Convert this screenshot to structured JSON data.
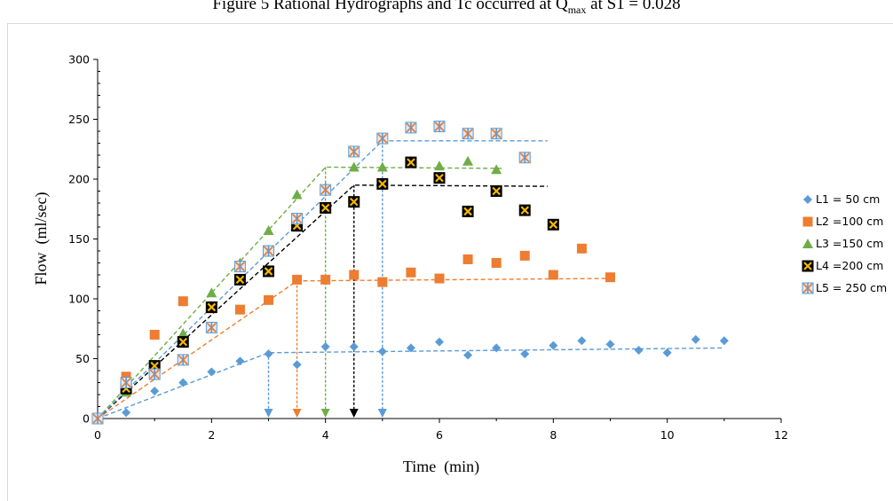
{
  "page": {
    "title": "Figure 5 Rational Hydrographs and Tc occurred at Q",
    "title_sub": "max",
    "title_tail": " at S1 = 0.028"
  },
  "colors": {
    "L1": "#5B9BD5",
    "L2": "#ED7D31",
    "L3": "#70AD47",
    "L4": "#000000",
    "L4_fill": "#F5B800",
    "L5_a": "#5B9BD5",
    "L5_b": "#ED7D31"
  },
  "chart_data": {
    "type": "scatter",
    "title": "",
    "xlabel": "Time  (min)",
    "ylabel": "Flow  (ml/sec)",
    "xlim": [
      0,
      12
    ],
    "ylim": [
      0,
      300
    ],
    "x_ticks": [
      "0",
      "2",
      "4",
      "6",
      "8",
      "10",
      "12"
    ],
    "y_ticks": [
      "0",
      "50",
      "100",
      "150",
      "200",
      "250",
      "300"
    ],
    "grid": false,
    "legend_position": "right",
    "series": [
      {
        "name": "L1 = 50 cm",
        "marker": "diamond",
        "points": [
          [
            0,
            0
          ],
          [
            0.5,
            5
          ],
          [
            1,
            23
          ],
          [
            1.5,
            30
          ],
          [
            2,
            39
          ],
          [
            2.5,
            48
          ],
          [
            3,
            54
          ],
          [
            3.5,
            45
          ],
          [
            4,
            60
          ],
          [
            4.5,
            60
          ],
          [
            5,
            56
          ],
          [
            5.5,
            59
          ],
          [
            6,
            64
          ],
          [
            6.5,
            53
          ],
          [
            7,
            59
          ],
          [
            7.5,
            54
          ],
          [
            8,
            61
          ],
          [
            8.5,
            65
          ],
          [
            9,
            62
          ],
          [
            9.5,
            57
          ],
          [
            10,
            55
          ],
          [
            10.5,
            66
          ],
          [
            11,
            65
          ]
        ],
        "trend": [
          [
            0,
            0
          ],
          [
            3,
            55
          ],
          [
            11,
            59
          ]
        ],
        "tc": 3,
        "tc_q": 55
      },
      {
        "name": "L2 =100 cm",
        "marker": "square",
        "points": [
          [
            0,
            0
          ],
          [
            0.5,
            35
          ],
          [
            1,
            70
          ],
          [
            1.5,
            98
          ],
          [
            2,
            92
          ],
          [
            2.5,
            91
          ],
          [
            3,
            99
          ],
          [
            3.5,
            116
          ],
          [
            4,
            116
          ],
          [
            4.5,
            120
          ],
          [
            5,
            114
          ],
          [
            5.5,
            122
          ],
          [
            6,
            117
          ],
          [
            6.5,
            133
          ],
          [
            7,
            130
          ],
          [
            7.5,
            136
          ],
          [
            8,
            120
          ],
          [
            8.5,
            142
          ],
          [
            9,
            118
          ]
        ],
        "trend": [
          [
            0,
            0
          ],
          [
            3.5,
            115
          ],
          [
            9,
            117
          ]
        ],
        "tc": 3.5,
        "tc_q": 115
      },
      {
        "name": "L3 =150 cm",
        "marker": "triangle",
        "points": [
          [
            0,
            0
          ],
          [
            0.5,
            22
          ],
          [
            1,
            45
          ],
          [
            1.5,
            71
          ],
          [
            2,
            105
          ],
          [
            2.5,
            130
          ],
          [
            3,
            157
          ],
          [
            3.5,
            187
          ],
          [
            4,
            193
          ],
          [
            4.5,
            210
          ],
          [
            5,
            210
          ],
          [
            5.5,
            215
          ],
          [
            6,
            211
          ],
          [
            6.5,
            215
          ],
          [
            7,
            208
          ]
        ],
        "trend": [
          [
            0,
            0
          ],
          [
            4,
            210
          ],
          [
            7.1,
            209
          ]
        ],
        "tc": 4,
        "tc_q": 210
      },
      {
        "name": "L4 =200 cm",
        "marker": "boxed-x",
        "points": [
          [
            0,
            0
          ],
          [
            0.5,
            25
          ],
          [
            1,
            44
          ],
          [
            1.5,
            64
          ],
          [
            2,
            93
          ],
          [
            2.5,
            116
          ],
          [
            3,
            123
          ],
          [
            3.5,
            161
          ],
          [
            4,
            176
          ],
          [
            4.5,
            181
          ],
          [
            5,
            196
          ],
          [
            5.5,
            214
          ],
          [
            6,
            201
          ],
          [
            6.5,
            173
          ],
          [
            7,
            190
          ],
          [
            7.5,
            174
          ],
          [
            8,
            162
          ]
        ],
        "trend": [
          [
            0,
            0
          ],
          [
            4.5,
            195
          ],
          [
            7.9,
            194
          ]
        ],
        "tc": 4.5,
        "tc_q": 195
      },
      {
        "name": "L5 = 250 cm",
        "marker": "asterisk",
        "points": [
          [
            0,
            0
          ],
          [
            0.5,
            30
          ],
          [
            1,
            37
          ],
          [
            1.5,
            49
          ],
          [
            2,
            76
          ],
          [
            2.5,
            127
          ],
          [
            3,
            140
          ],
          [
            3.5,
            167
          ],
          [
            4,
            191
          ],
          [
            4.5,
            223
          ],
          [
            5,
            234
          ],
          [
            5.5,
            243
          ],
          [
            6,
            244
          ],
          [
            6.5,
            238
          ],
          [
            7,
            238
          ],
          [
            7.5,
            218
          ]
        ],
        "trend": [
          [
            0,
            0
          ],
          [
            5,
            232
          ],
          [
            7.9,
            232
          ]
        ],
        "tc": 5,
        "tc_q": 232
      }
    ]
  }
}
